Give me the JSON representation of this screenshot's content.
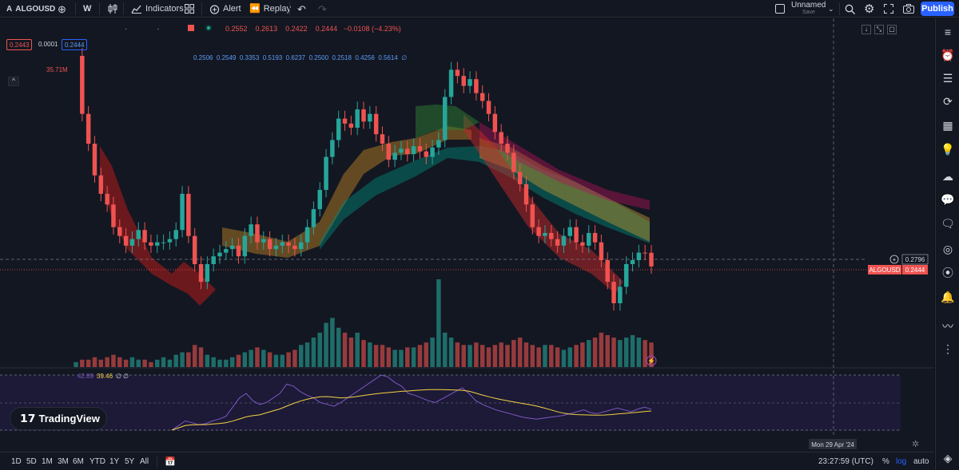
{
  "topbar": {
    "symbol": "ALGOUSD",
    "interval": "W",
    "indicators_label": "Indicators",
    "alert_label": "Alert",
    "replay_label": "Replay",
    "layout_name": "Unnamed",
    "layout_status": "Save",
    "publish_label": "Publish"
  },
  "legend": {
    "ohlc_values": [
      "0.2552",
      "0.2613",
      "0.2422",
      "0.2444",
      "−0.0108 (−4.23%)"
    ],
    "bid": "0.2443",
    "spread": "0.0001",
    "ask": "0.2444",
    "indicator_values": "0.2506  0.2549  0.3353  0.5193  0.6237  0.2500  0.2518  0.4256  0.5614  ∅",
    "volume_label": "35.71M",
    "rsi_values": [
      "42.89",
      "39.46",
      "∅",
      "∅"
    ]
  },
  "price_labels": {
    "crosshair_price": "0.2796",
    "symbol_tag": "ALGOUSD",
    "last_price": "0.2444",
    "date_label": "Mon 29 Apr '24"
  },
  "bottom_bar": {
    "ranges": [
      "1D",
      "5D",
      "1M",
      "3M",
      "6M",
      "YTD",
      "1Y",
      "5Y",
      "All"
    ],
    "clock": "23:27:59 (UTC)",
    "percent_label": "%",
    "log_label": "log",
    "auto_label": "auto"
  },
  "watermark": "TradingView",
  "colors": {
    "up": "#26a69a",
    "down": "#ef5350",
    "background": "#131722",
    "accent": "#2962ff",
    "rsi_line": "#7e57c2",
    "rsi_ma": "#f5d142"
  },
  "chart_data": {
    "type": "candlestick",
    "symbol": "ALGOUSD",
    "interval": "W",
    "scale": "log",
    "close_series": [
      1.95,
      1.1,
      0.82,
      0.6,
      0.5,
      0.45,
      0.36,
      0.33,
      0.3,
      0.32,
      0.35,
      0.31,
      0.3,
      0.31,
      0.31,
      0.32,
      0.35,
      0.5,
      0.33,
      0.25,
      0.21,
      0.25,
      0.27,
      0.28,
      0.29,
      0.3,
      0.27,
      0.33,
      0.37,
      0.31,
      0.32,
      0.29,
      0.3,
      0.31,
      0.3,
      0.29,
      0.31,
      0.36,
      0.43,
      0.52,
      0.72,
      0.85,
      1.05,
      1.0,
      0.96,
      1.15,
      1.02,
      1.1,
      0.9,
      0.82,
      0.7,
      0.75,
      0.78,
      0.74,
      0.8,
      0.76,
      0.72,
      0.79,
      0.85,
      1.3,
      1.7,
      1.6,
      1.45,
      1.55,
      1.35,
      1.25,
      1.1,
      0.92,
      0.82,
      0.75,
      0.62,
      0.55,
      0.45,
      0.36,
      0.33,
      0.34,
      0.32,
      0.3,
      0.33,
      0.36,
      0.31,
      0.3,
      0.34,
      0.31,
      0.26,
      0.21,
      0.17,
      0.2,
      0.25,
      0.26,
      0.28,
      0.2796,
      0.2444
    ],
    "volume_series": [
      2,
      3,
      3,
      4,
      3,
      4,
      5,
      4,
      3,
      4,
      3,
      3,
      2,
      3,
      4,
      3,
      5,
      6,
      6,
      9,
      8,
      5,
      4,
      3,
      3,
      4,
      5,
      6,
      7,
      8,
      7,
      6,
      5,
      5,
      6,
      7,
      9,
      10,
      12,
      14,
      18,
      20,
      16,
      14,
      12,
      14,
      11,
      10,
      9,
      9,
      8,
      7,
      7,
      8,
      8,
      9,
      10,
      12,
      35.71,
      14,
      12,
      10,
      9,
      9,
      10,
      9,
      8,
      9,
      10,
      9,
      11,
      12,
      10,
      9,
      8,
      9,
      9,
      8,
      7,
      8,
      9,
      10,
      11,
      12,
      14,
      13,
      12,
      11,
      12,
      13,
      12,
      11,
      10
    ],
    "rsi_series": [
      20,
      25,
      30,
      28,
      26,
      27,
      30,
      32,
      35,
      45,
      55,
      60,
      52,
      48,
      50,
      55,
      60,
      70,
      68,
      62,
      58,
      55,
      50,
      48,
      46,
      50,
      55,
      60,
      65,
      70,
      75,
      80,
      78,
      72,
      68,
      60,
      58,
      55,
      52,
      50,
      54,
      58,
      62,
      66,
      60,
      52,
      48,
      45,
      42,
      40,
      38,
      36,
      34,
      33,
      32,
      33,
      34,
      35,
      36,
      38,
      40,
      42,
      39,
      38,
      40,
      42,
      44,
      42,
      40,
      43,
      45,
      42.89
    ],
    "rsi_ma_latest": 39.46,
    "volume_max_label": "35.71M",
    "crosshair_price": 0.2796,
    "last_price": 0.2444,
    "crosshair_date": "Mon 29 Apr '24",
    "grid": false
  }
}
